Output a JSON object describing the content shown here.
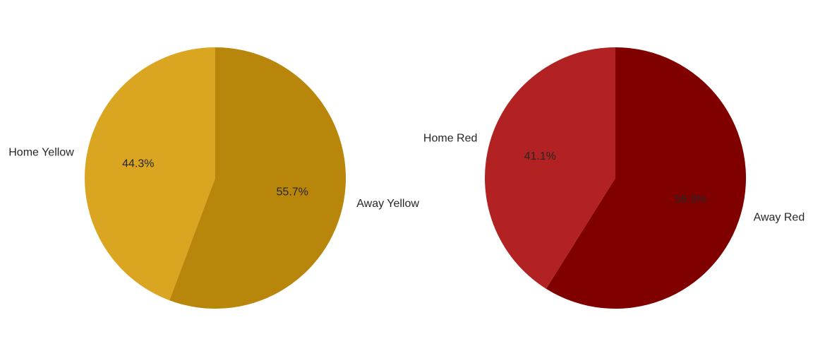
{
  "chart_data": [
    {
      "type": "pie",
      "title": "",
      "categories": [
        "Home Yellow",
        "Away Yellow"
      ],
      "values": [
        44.3,
        55.7
      ],
      "value_labels": [
        "44.3%",
        "55.7%"
      ],
      "colors": [
        "#daa520",
        "#b8860b"
      ],
      "start_angle_deg": 90,
      "direction": "counterclockwise"
    },
    {
      "type": "pie",
      "title": "",
      "categories": [
        "Home Red",
        "Away Red"
      ],
      "values": [
        41.1,
        58.9
      ],
      "value_labels": [
        "41.1%",
        "58.9%"
      ],
      "colors": [
        "#b22222",
        "#800000"
      ],
      "start_angle_deg": 90,
      "direction": "counterclockwise"
    }
  ]
}
